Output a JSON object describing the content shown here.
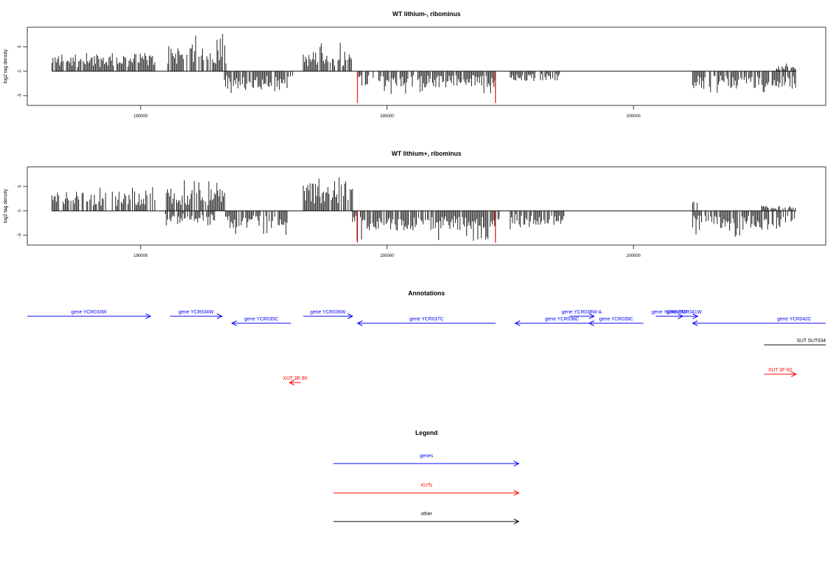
{
  "chart_data": [
    {
      "type": "bar",
      "title": "WT lithium-, ribominus",
      "ylabel": "log2 tag density",
      "xlim": [
        187700,
        203900
      ],
      "ylim": [
        -7,
        9
      ],
      "xticks": [
        190000,
        195000,
        200000
      ],
      "yticks": [
        -5,
        0,
        5
      ],
      "baseline_range": [
        188200,
        203300
      ],
      "gene_boundaries": [
        194400,
        197200
      ],
      "plus_regions": [
        {
          "start": 188200,
          "end": 190300,
          "mean": 2.5,
          "max": 4.0
        },
        {
          "start": 190550,
          "end": 191750,
          "mean": 3.8,
          "max": 7.8
        },
        {
          "start": 193300,
          "end": 194300,
          "mean": 2.8,
          "max": 6.0
        },
        {
          "start": 202900,
          "end": 203300,
          "mean": 0.8,
          "max": 1.6
        }
      ],
      "minus_regions": [
        {
          "start": 191700,
          "end": 193100,
          "mean": -2.5,
          "max": -4.5
        },
        {
          "start": 194400,
          "end": 197200,
          "mean": -2.3,
          "max": -5.0
        },
        {
          "start": 197500,
          "end": 198500,
          "mean": -1.5,
          "max": -2.0
        },
        {
          "start": 201200,
          "end": 203300,
          "mean": -2.5,
          "max": -4.5
        }
      ]
    },
    {
      "type": "bar",
      "title": "WT lithium+, ribominus",
      "ylabel": "log2 tag density",
      "xlim": [
        187700,
        203900
      ],
      "ylim": [
        -7,
        9
      ],
      "xticks": [
        190000,
        195000,
        200000
      ],
      "yticks": [
        -5,
        0,
        5
      ],
      "baseline_range": [
        188200,
        203300
      ],
      "gene_boundaries": [
        194400,
        197200
      ],
      "plus_regions": [
        {
          "start": 188200,
          "end": 190300,
          "mean": 2.8,
          "max": 5.0
        },
        {
          "start": 190500,
          "end": 191750,
          "mean": 3.2,
          "max": 7.0
        },
        {
          "start": 193300,
          "end": 194300,
          "mean": 4.2,
          "max": 8.2
        },
        {
          "start": 201200,
          "end": 201300,
          "mean": 1.5,
          "max": 3.0
        },
        {
          "start": 202600,
          "end": 203300,
          "mean": 0.8,
          "max": 2.5
        }
      ],
      "minus_regions": [
        {
          "start": 190500,
          "end": 191500,
          "mean": -1.5,
          "max": -3.0
        },
        {
          "start": 191700,
          "end": 193000,
          "mean": -2.5,
          "max": -5.0
        },
        {
          "start": 194300,
          "end": 197300,
          "mean": -2.8,
          "max": -6.2
        },
        {
          "start": 197500,
          "end": 198600,
          "mean": -2.0,
          "max": -4.0
        },
        {
          "start": 201200,
          "end": 203300,
          "mean": -2.8,
          "max": -6.0
        }
      ]
    }
  ],
  "annotations": {
    "title": "Annotations",
    "items": [
      {
        "label": "gene YCR033W",
        "start": 187700,
        "end": 190200,
        "strand": "+",
        "kind": "gene",
        "row": 0
      },
      {
        "label": "gene YCR034W",
        "start": 190600,
        "end": 191650,
        "strand": "+",
        "kind": "gene",
        "row": 0
      },
      {
        "label": "gene YCR035C",
        "start": 191850,
        "end": 193050,
        "strand": "-",
        "kind": "gene",
        "row": 1
      },
      {
        "label": "gene YCR036W",
        "start": 193300,
        "end": 194300,
        "strand": "+",
        "kind": "gene",
        "row": 0
      },
      {
        "label": "gene YCR037C",
        "start": 194400,
        "end": 197200,
        "strand": "-",
        "kind": "gene",
        "row": 1
      },
      {
        "label": "gene YCR038W-A",
        "start": 198700,
        "end": 199200,
        "strand": "+",
        "kind": "gene",
        "row": 0
      },
      {
        "label": "gene YCR038C",
        "start": 197600,
        "end": 199500,
        "strand": "-",
        "kind": "gene",
        "row": 1
      },
      {
        "label": "gene YCR039C",
        "start": 199100,
        "end": 200200,
        "strand": "-",
        "kind": "gene",
        "row": 1
      },
      {
        "label": "gene YCR040W",
        "start": 200450,
        "end": 201000,
        "strand": "+",
        "kind": "gene",
        "row": 0
      },
      {
        "label": "gene YCR041W",
        "start": 200750,
        "end": 201300,
        "strand": "+",
        "kind": "gene",
        "row": 0
      },
      {
        "label": "gene YCR042C",
        "start": 201200,
        "end": 203900,
        "strand": "-",
        "kind": "gene",
        "row": 1
      },
      {
        "label": "SUT SUT034",
        "start": 202650,
        "end": 203900,
        "strand": ".",
        "kind": "other",
        "row": 2
      },
      {
        "label": "XUT 3R-90",
        "start": 193020,
        "end": 193250,
        "strand": "-",
        "kind": "xut",
        "row": 3
      },
      {
        "label": "XUT 3F-92",
        "start": 202650,
        "end": 203300,
        "strand": "+",
        "kind": "xut",
        "row": 4
      }
    ]
  },
  "legend": {
    "title": "Legend",
    "items": [
      {
        "label": "genes",
        "color": "#0000ff"
      },
      {
        "label": "XUTs",
        "color": "#ff0000"
      },
      {
        "label": "other",
        "color": "#000000"
      }
    ]
  },
  "colors": {
    "gene": "#0000ff",
    "xut": "#ff0000",
    "other": "#000000",
    "boundary": "#ff0000"
  }
}
